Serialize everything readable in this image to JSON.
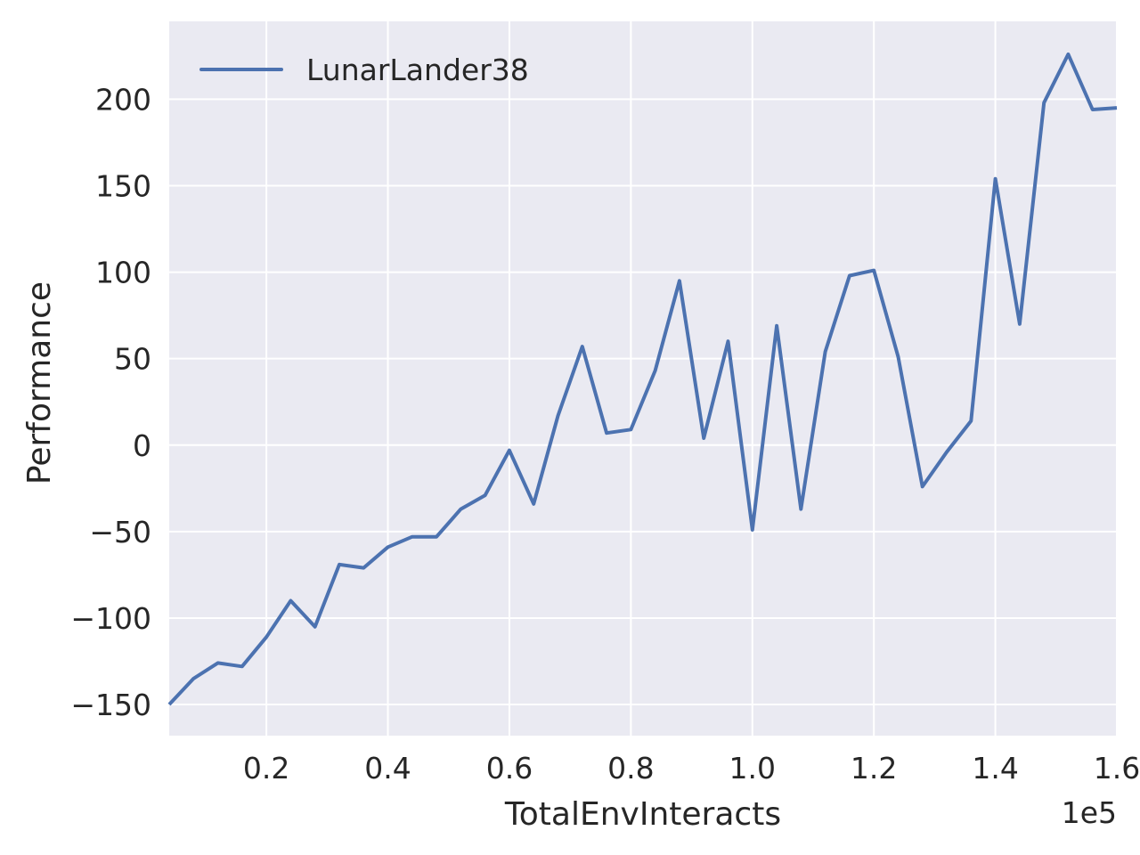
{
  "chart_data": {
    "type": "line",
    "title": "",
    "xlabel": "TotalEnvInteracts",
    "ylabel": "Performance",
    "x_offset_label": "1e5",
    "xlim": [
      0.04,
      1.6
    ],
    "ylim": [
      -168,
      245
    ],
    "x_ticks": [
      0.2,
      0.4,
      0.6,
      0.8,
      1.0,
      1.2,
      1.4,
      1.6
    ],
    "x_tick_labels": [
      "0.2",
      "0.4",
      "0.6",
      "0.8",
      "1.0",
      "1.2",
      "1.4",
      "1.6"
    ],
    "y_ticks": [
      -150,
      -100,
      -50,
      0,
      50,
      100,
      150,
      200
    ],
    "y_tick_labels": [
      "−150",
      "−100",
      "−50",
      "0",
      "50",
      "100",
      "150",
      "200"
    ],
    "grid": true,
    "legend_position": "top-left",
    "background_color": "#eaeaf2",
    "grid_color": "#ffffff",
    "series": [
      {
        "name": "LunarLander38",
        "color": "#4c72b0",
        "x": [
          0.04,
          0.08,
          0.12,
          0.16,
          0.2,
          0.24,
          0.28,
          0.32,
          0.36,
          0.4,
          0.44,
          0.48,
          0.52,
          0.56,
          0.6,
          0.64,
          0.68,
          0.72,
          0.76,
          0.8,
          0.84,
          0.88,
          0.92,
          0.96,
          1.0,
          1.04,
          1.08,
          1.12,
          1.16,
          1.2,
          1.24,
          1.28,
          1.32,
          1.36,
          1.4,
          1.44,
          1.48,
          1.52,
          1.56,
          1.6
        ],
        "y": [
          -150,
          -135,
          -126,
          -128,
          -111,
          -90,
          -105,
          -69,
          -71,
          -59,
          -53,
          -53,
          -37,
          -29,
          -3,
          -34,
          17,
          57,
          7,
          9,
          43,
          95,
          4,
          60,
          -49,
          69,
          -37,
          54,
          98,
          101,
          51,
          -24,
          -4,
          14,
          154,
          70,
          198,
          226,
          194,
          195
        ]
      }
    ]
  }
}
